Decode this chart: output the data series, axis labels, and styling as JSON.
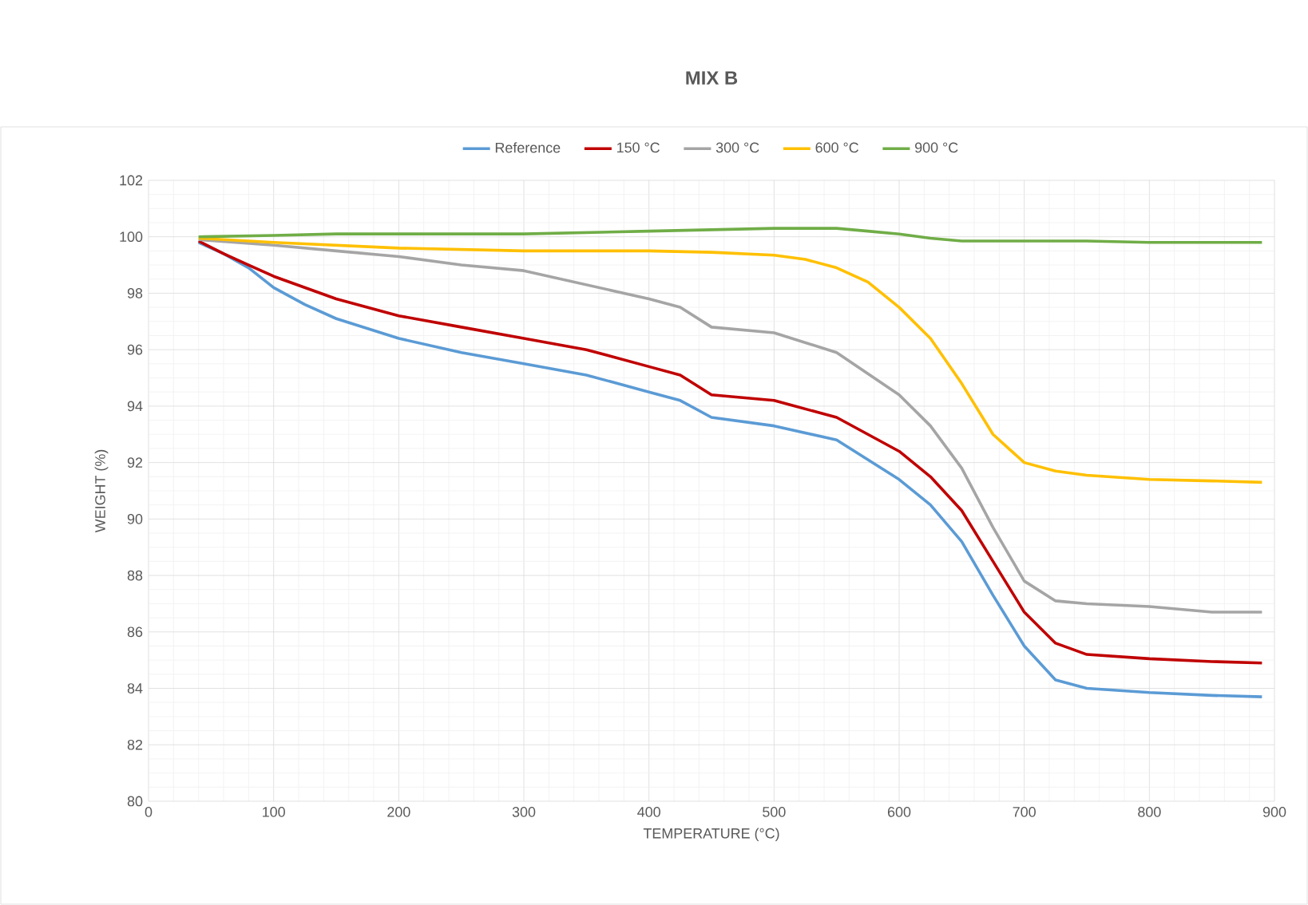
{
  "chart_data": {
    "type": "line",
    "title": "MIX B",
    "xlabel": "TEMPERATURE (°C)",
    "ylabel": "WEIGHT  (%)",
    "xlim": [
      0,
      900
    ],
    "ylim": [
      80,
      102
    ],
    "xticks": [
      0,
      100,
      200,
      300,
      400,
      500,
      600,
      700,
      800,
      900
    ],
    "yticks": [
      80,
      82,
      84,
      86,
      88,
      90,
      92,
      94,
      96,
      98,
      100,
      102
    ],
    "grid": true,
    "legend": "top",
    "line_style": "solid",
    "marker": "none",
    "series": [
      {
        "name": "Reference",
        "color": "#5b9bd5",
        "x": [
          40,
          60,
          80,
          100,
          125,
          150,
          200,
          250,
          300,
          350,
          400,
          425,
          450,
          500,
          550,
          600,
          625,
          650,
          675,
          700,
          725,
          750,
          800,
          850,
          890
        ],
        "values": [
          99.8,
          99.4,
          98.9,
          98.2,
          97.6,
          97.1,
          96.4,
          95.9,
          95.5,
          95.1,
          94.5,
          94.2,
          93.6,
          93.3,
          92.8,
          91.4,
          90.5,
          89.2,
          87.3,
          85.5,
          84.3,
          84.0,
          83.85,
          83.75,
          83.7
        ]
      },
      {
        "name": "150 °C",
        "color": "#c00000",
        "x": [
          40,
          60,
          80,
          100,
          150,
          200,
          250,
          300,
          350,
          400,
          425,
          450,
          500,
          550,
          600,
          625,
          650,
          675,
          700,
          725,
          750,
          800,
          850,
          890
        ],
        "values": [
          99.85,
          99.4,
          99.0,
          98.6,
          97.8,
          97.2,
          96.8,
          96.4,
          96.0,
          95.4,
          95.1,
          94.4,
          94.2,
          93.6,
          92.4,
          91.5,
          90.3,
          88.5,
          86.7,
          85.6,
          85.2,
          85.05,
          84.95,
          84.9
        ]
      },
      {
        "name": "300 °C",
        "color": "#a5a5a5",
        "x": [
          40,
          100,
          150,
          200,
          250,
          300,
          350,
          400,
          425,
          450,
          500,
          550,
          600,
          625,
          650,
          675,
          700,
          725,
          750,
          800,
          850,
          890
        ],
        "values": [
          99.9,
          99.7,
          99.5,
          99.3,
          99.0,
          98.8,
          98.3,
          97.8,
          97.5,
          96.8,
          96.6,
          95.9,
          94.4,
          93.3,
          91.8,
          89.7,
          87.8,
          87.1,
          87.0,
          86.9,
          86.7,
          86.7
        ]
      },
      {
        "name": "600 °C",
        "color": "#ffc000",
        "x": [
          40,
          100,
          150,
          200,
          300,
          400,
          450,
          500,
          525,
          550,
          575,
          600,
          625,
          650,
          675,
          700,
          725,
          750,
          800,
          850,
          890
        ],
        "values": [
          99.95,
          99.8,
          99.7,
          99.6,
          99.5,
          99.5,
          99.45,
          99.35,
          99.2,
          98.9,
          98.4,
          97.5,
          96.4,
          94.8,
          93.0,
          92.0,
          91.7,
          91.55,
          91.4,
          91.35,
          91.3
        ]
      },
      {
        "name": "900 °C",
        "color": "#70ad47",
        "x": [
          40,
          100,
          150,
          300,
          400,
          500,
          550,
          575,
          600,
          625,
          650,
          700,
          750,
          800,
          890
        ],
        "values": [
          100,
          100.05,
          100.1,
          100.1,
          100.2,
          100.3,
          100.3,
          100.2,
          100.1,
          99.95,
          99.85,
          99.85,
          99.85,
          99.8,
          99.8
        ]
      }
    ]
  }
}
